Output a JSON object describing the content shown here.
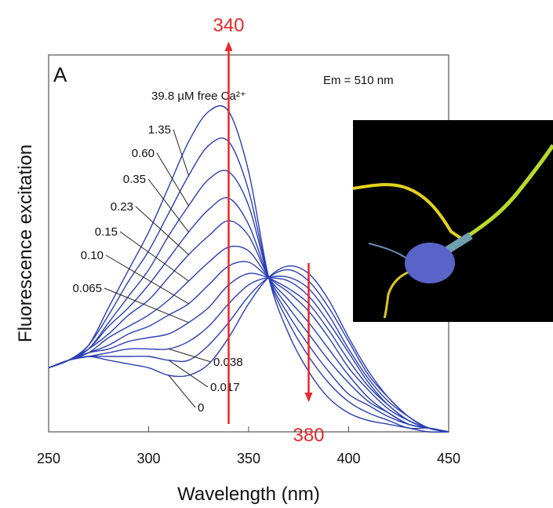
{
  "chart_data": {
    "type": "line",
    "panel_label": "A",
    "annotation": "Em = 510 nm",
    "x_label": "Wavelength (nm)",
    "y_label": "Fluorescence excitation",
    "color": "#2b3fb3",
    "arrow_color": "#e8272a",
    "arrows": [
      {
        "label": "340",
        "x": 340,
        "direction": "up"
      },
      {
        "label": "380",
        "x": 380,
        "direction": "down"
      }
    ],
    "xlim": [
      250,
      450
    ],
    "xticks": [
      250,
      300,
      350,
      400,
      450
    ],
    "ylim": [
      0,
      1
    ],
    "x": [
      250,
      260,
      270,
      280,
      290,
      300,
      310,
      320,
      330,
      340,
      350,
      360,
      370,
      380,
      390,
      400,
      410,
      420,
      430,
      440,
      450
    ],
    "series": [
      {
        "name": "39.8 µM free Ca²⁺",
        "values": [
          0.17,
          0.19,
          0.23,
          0.33,
          0.43,
          0.53,
          0.65,
          0.77,
          0.85,
          0.85,
          0.69,
          0.41,
          0.26,
          0.16,
          0.09,
          0.05,
          0.03,
          0.02,
          0.01,
          0,
          0
        ]
      },
      {
        "name": "1.35",
        "values": [
          0.17,
          0.19,
          0.23,
          0.31,
          0.4,
          0.48,
          0.58,
          0.68,
          0.76,
          0.77,
          0.64,
          0.41,
          0.29,
          0.2,
          0.13,
          0.08,
          0.05,
          0.03,
          0.01,
          0.01,
          0
        ]
      },
      {
        "name": "0.60",
        "values": [
          0.17,
          0.19,
          0.22,
          0.29,
          0.36,
          0.43,
          0.52,
          0.6,
          0.67,
          0.69,
          0.6,
          0.41,
          0.31,
          0.23,
          0.16,
          0.1,
          0.07,
          0.04,
          0.02,
          0.01,
          0
        ]
      },
      {
        "name": "0.35",
        "values": [
          0.17,
          0.19,
          0.22,
          0.28,
          0.33,
          0.39,
          0.46,
          0.53,
          0.59,
          0.62,
          0.55,
          0.41,
          0.33,
          0.26,
          0.19,
          0.13,
          0.08,
          0.05,
          0.02,
          0.01,
          0
        ]
      },
      {
        "name": "0.23",
        "values": [
          0.17,
          0.19,
          0.22,
          0.26,
          0.31,
          0.35,
          0.41,
          0.47,
          0.52,
          0.56,
          0.52,
          0.41,
          0.35,
          0.29,
          0.22,
          0.15,
          0.09,
          0.05,
          0.02,
          0.01,
          0
        ]
      },
      {
        "name": "0.15",
        "values": [
          0.17,
          0.19,
          0.21,
          0.25,
          0.28,
          0.31,
          0.35,
          0.4,
          0.45,
          0.49,
          0.48,
          0.41,
          0.37,
          0.32,
          0.25,
          0.17,
          0.11,
          0.06,
          0.03,
          0.01,
          0
        ]
      },
      {
        "name": "0.10",
        "values": [
          0.17,
          0.19,
          0.21,
          0.23,
          0.26,
          0.28,
          0.31,
          0.34,
          0.39,
          0.44,
          0.45,
          0.41,
          0.38,
          0.34,
          0.27,
          0.19,
          0.12,
          0.07,
          0.03,
          0.01,
          0
        ]
      },
      {
        "name": "0.065",
        "values": [
          0.17,
          0.19,
          0.21,
          0.22,
          0.24,
          0.25,
          0.26,
          0.29,
          0.33,
          0.39,
          0.42,
          0.41,
          0.4,
          0.36,
          0.29,
          0.21,
          0.13,
          0.07,
          0.03,
          0.01,
          0
        ]
      },
      {
        "name": "0.038",
        "values": [
          0.17,
          0.19,
          0.2,
          0.21,
          0.22,
          0.22,
          0.22,
          0.24,
          0.28,
          0.34,
          0.39,
          0.41,
          0.41,
          0.38,
          0.31,
          0.22,
          0.14,
          0.08,
          0.04,
          0.01,
          0
        ]
      },
      {
        "name": "0.017",
        "values": [
          0.17,
          0.19,
          0.2,
          0.2,
          0.2,
          0.2,
          0.19,
          0.19,
          0.23,
          0.29,
          0.36,
          0.41,
          0.43,
          0.4,
          0.33,
          0.24,
          0.15,
          0.09,
          0.04,
          0.01,
          0
        ]
      },
      {
        "name": "0",
        "values": [
          0.17,
          0.19,
          0.2,
          0.19,
          0.18,
          0.17,
          0.15,
          0.15,
          0.18,
          0.25,
          0.34,
          0.41,
          0.44,
          0.42,
          0.35,
          0.25,
          0.16,
          0.09,
          0.04,
          0.01,
          0
        ]
      }
    ]
  }
}
